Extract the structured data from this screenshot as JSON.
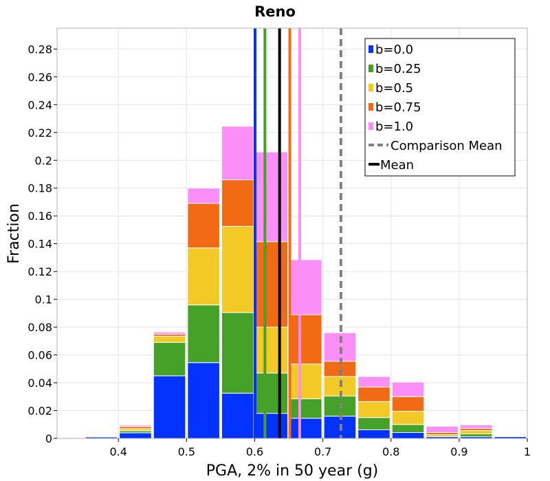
{
  "chart_data": {
    "type": "bar",
    "stacked": true,
    "title": "Reno",
    "xlabel": "PGA, 2% in 50 year (g)",
    "ylabel": "Fraction",
    "xlim": [
      0.31,
      1.0
    ],
    "ylim": [
      0,
      0.295
    ],
    "grid": true,
    "legend_position": "top-right",
    "bin_width": 0.05,
    "bins": [
      0.325,
      0.375,
      0.425,
      0.475,
      0.525,
      0.575,
      0.625,
      0.675,
      0.725,
      0.775,
      0.825,
      0.875,
      0.925,
      0.975
    ],
    "xticks": [
      {
        "value": 0.4,
        "label": "0.4"
      },
      {
        "value": 0.5,
        "label": "0.5"
      },
      {
        "value": 0.6,
        "label": "0.6"
      },
      {
        "value": 0.7,
        "label": "0.7"
      },
      {
        "value": 0.8,
        "label": "0.8"
      },
      {
        "value": 0.9,
        "label": "0.9"
      },
      {
        "value": 1.0,
        "label": "1"
      }
    ],
    "yticks": [
      {
        "value": 0,
        "label": "0"
      },
      {
        "value": 0.02,
        "label": "0.02"
      },
      {
        "value": 0.04,
        "label": "0.04"
      },
      {
        "value": 0.06,
        "label": "0.06"
      },
      {
        "value": 0.08,
        "label": "0.08"
      },
      {
        "value": 0.1,
        "label": "0.1"
      },
      {
        "value": 0.12,
        "label": "0.12"
      },
      {
        "value": 0.14,
        "label": "0.14"
      },
      {
        "value": 0.16,
        "label": "0.16"
      },
      {
        "value": 0.18,
        "label": "0.18"
      },
      {
        "value": 0.2,
        "label": "0.2"
      },
      {
        "value": 0.22,
        "label": "0.22"
      },
      {
        "value": 0.24,
        "label": "0.24"
      },
      {
        "value": 0.26,
        "label": "0.26"
      },
      {
        "value": 0.28,
        "label": "0.28"
      }
    ],
    "series": [
      {
        "name": "b=0.0",
        "color": "#0433ff",
        "values": [
          0.0005,
          0.001,
          0.004,
          0.045,
          0.0545,
          0.0325,
          0.018,
          0.0145,
          0.016,
          0.0062,
          0.0042,
          0.0012,
          0.0012,
          0.0012
        ]
      },
      {
        "name": "b=0.25",
        "color": "#45a127",
        "values": [
          0.0,
          0.0005,
          0.0015,
          0.024,
          0.0415,
          0.058,
          0.029,
          0.014,
          0.0145,
          0.0088,
          0.0058,
          0.0,
          0.002,
          0.0
        ]
      },
      {
        "name": "b=0.5",
        "color": "#f2c925",
        "values": [
          0.0,
          0.0005,
          0.0015,
          0.0045,
          0.041,
          0.062,
          0.033,
          0.025,
          0.014,
          0.0115,
          0.0095,
          0.0015,
          0.0025,
          0.0
        ]
      },
      {
        "name": "b=0.75",
        "color": "#f26a14",
        "values": [
          0.0,
          0.0,
          0.0015,
          0.0015,
          0.032,
          0.0335,
          0.0615,
          0.0355,
          0.011,
          0.0105,
          0.0105,
          0.0015,
          0.0015,
          0.0
        ]
      },
      {
        "name": "b=1.0",
        "color": "#fb8ef7",
        "values": [
          0.0,
          0.0,
          0.001,
          0.0015,
          0.011,
          0.0385,
          0.0645,
          0.0395,
          0.0205,
          0.0075,
          0.0105,
          0.0045,
          0.0025,
          0.0
        ]
      }
    ],
    "mean_lines": [
      {
        "series": "b=0.0",
        "value": 0.6005,
        "color": "#0433ff"
      },
      {
        "series": "b=0.25",
        "value": 0.615,
        "color": "#45a127"
      },
      {
        "series": "b=0.75",
        "value": 0.6515,
        "color": "#f26a14"
      },
      {
        "series": "b=1.0",
        "value": 0.666,
        "color": "#fb8ef7"
      }
    ],
    "comparison_mean": {
      "label": "Comparison Mean",
      "value": 0.7265,
      "color": "#808080"
    },
    "mean": {
      "label": "Mean",
      "value": 0.6365,
      "color": "#000000"
    }
  }
}
